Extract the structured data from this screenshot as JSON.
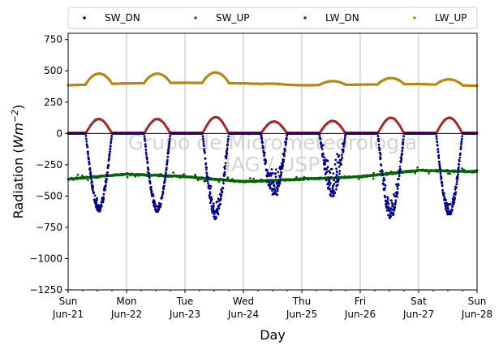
{
  "chart_data": {
    "type": "scatter",
    "xlabel": "Day",
    "ylabel_prefix": "Radiation (",
    "ylabel_unit": "Wm",
    "ylabel_exp": "−2",
    "ylabel_suffix": ")",
    "ylim": [
      -1250,
      800
    ],
    "y_ticks": [
      750,
      500,
      250,
      0,
      -250,
      -500,
      -750,
      -1000,
      -1250
    ],
    "y_tick_labels": [
      "750",
      "500",
      "250",
      "0",
      "−250",
      "−500",
      "−750",
      "−1000",
      "−1250"
    ],
    "xlim": [
      "2020-06-21",
      "2020-06-28"
    ],
    "x_ticks": [
      {
        "day": "Sun",
        "date": "Jun-21"
      },
      {
        "day": "Mon",
        "date": "Jun-22"
      },
      {
        "day": "Tue",
        "date": "Jun-23"
      },
      {
        "day": "Wed",
        "date": "Jun-24"
      },
      {
        "day": "Thu",
        "date": "Jun-25"
      },
      {
        "day": "Fri",
        "date": "Jun-26"
      },
      {
        "day": "Sat",
        "date": "Jun-27"
      },
      {
        "day": "Sun",
        "date": "Jun-28"
      }
    ],
    "x_grid": true,
    "y_grid": false,
    "zero_line": true,
    "legend_placement": "top, outside plot",
    "watermark_lines": [
      "Grupo de Micrometeorologia",
      "IAG / USP"
    ],
    "series": [
      {
        "name": "SW_DN",
        "color": "#00008b",
        "daily_peak": [
          -625,
          -630,
          -690,
          -530,
          -510,
          -690,
          -660
        ],
        "daily_spread": [
          0.06,
          0.05,
          0.12,
          0.18,
          0.25,
          0.1,
          0.07
        ],
        "baseline": 0
      },
      {
        "name": "SW_UP",
        "color": "#a52a2a",
        "daily_peak": [
          115,
          115,
          130,
          95,
          100,
          125,
          125
        ],
        "baseline": 5
      },
      {
        "name": "LW_DN",
        "color": "#006400",
        "daily_level": [
          -365,
          -325,
          -345,
          -385,
          -365,
          -345,
          -295
        ],
        "end_level": -305
      },
      {
        "name": "LW_UP",
        "color": "#b8860b",
        "daily_base": [
          385,
          400,
          405,
          400,
          385,
          390,
          395
        ],
        "daily_peak": [
          470,
          475,
          490,
          405,
          415,
          440,
          440
        ],
        "end_level": 380
      }
    ]
  }
}
